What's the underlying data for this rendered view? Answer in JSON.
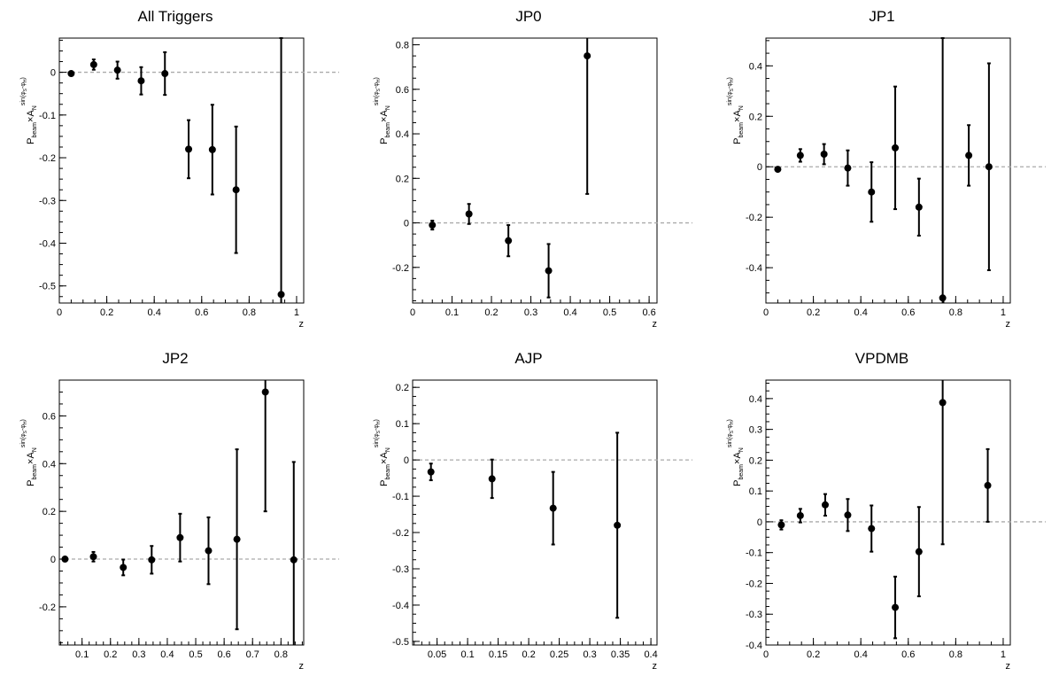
{
  "chart_data": [
    {
      "type": "scatter",
      "title": "All Triggers",
      "xlabel": "z",
      "ylabel": {
        "prefix": "P",
        "sub": "beam",
        "times": "×A",
        "base_sub": "N",
        "sup": "sin(φ",
        "sup_sub1": "S",
        "sup_mid": "-φ",
        "sup_sub2": "H",
        "sup_end": ")"
      },
      "xlim": [
        0,
        1.03
      ],
      "ylim": [
        -0.54,
        0.08
      ],
      "xticks": [
        0,
        0.2,
        0.4,
        0.6,
        0.8,
        1
      ],
      "xtick_labels": [
        "0",
        "0.2",
        "0.4",
        "0.6",
        "0.8",
        "1"
      ],
      "yticks": [
        -0.5,
        -0.4,
        -0.3,
        -0.2,
        -0.1,
        0
      ],
      "ytick_labels": [
        "-0.5",
        "-0.4",
        "-0.3",
        "-0.2",
        "-0.1",
        "0"
      ],
      "x": [
        0.05,
        0.145,
        0.245,
        0.345,
        0.445,
        0.545,
        0.645,
        0.745,
        0.935
      ],
      "y": [
        -0.003,
        0.018,
        0.005,
        -0.02,
        -0.003,
        -0.18,
        -0.181,
        -0.275,
        -0.52
      ],
      "yerr": [
        0.003,
        0.012,
        0.02,
        0.032,
        0.05,
        0.068,
        0.105,
        0.148,
        0.6
      ],
      "zero_line": true
    },
    {
      "type": "scatter",
      "title": "JP0",
      "xlabel": "z",
      "ylabel": {
        "prefix": "P",
        "sub": "beam",
        "times": "×A",
        "base_sub": "N",
        "sup": "sin(φ",
        "sup_sub1": "S",
        "sup_mid": "-φ",
        "sup_sub2": "H",
        "sup_end": ")"
      },
      "xlim": [
        0,
        0.62
      ],
      "ylim": [
        -0.36,
        0.83
      ],
      "xticks": [
        0,
        0.1,
        0.2,
        0.3,
        0.4,
        0.5,
        0.6
      ],
      "xtick_labels": [
        "0",
        "0.1",
        "0.2",
        "0.3",
        "0.4",
        "0.5",
        "0.6"
      ],
      "yticks": [
        -0.2,
        0,
        0.2,
        0.4,
        0.6,
        0.8
      ],
      "ytick_labels": [
        "-0.2",
        "0",
        "0.2",
        "0.4",
        "0.6",
        "0.8"
      ],
      "x": [
        0.05,
        0.143,
        0.243,
        0.345,
        0.443
      ],
      "y": [
        -0.01,
        0.04,
        -0.08,
        -0.215,
        0.75
      ],
      "yerr": [
        0.02,
        0.045,
        0.07,
        0.12,
        0.62
      ],
      "zero_line": true
    },
    {
      "type": "scatter",
      "title": "JP1",
      "xlabel": "z",
      "ylabel": {
        "prefix": "P",
        "sub": "beam",
        "times": "×A",
        "base_sub": "N",
        "sup": "sin(φ",
        "sup_sub1": "S",
        "sup_mid": "-φ",
        "sup_sub2": "H",
        "sup_end": ")"
      },
      "xlim": [
        0,
        1.03
      ],
      "ylim": [
        -0.54,
        0.51
      ],
      "xticks": [
        0,
        0.2,
        0.4,
        0.6,
        0.8,
        1
      ],
      "xtick_labels": [
        "0",
        "0.2",
        "0.4",
        "0.6",
        "0.8",
        "1"
      ],
      "yticks": [
        -0.4,
        -0.2,
        0,
        0.2,
        0.4
      ],
      "ytick_labels": [
        "-0.4",
        "-0.2",
        "0",
        "0.2",
        "0.4"
      ],
      "x": [
        0.05,
        0.145,
        0.245,
        0.345,
        0.445,
        0.545,
        0.645,
        0.745,
        0.855,
        0.94
      ],
      "y": [
        -0.01,
        0.045,
        0.05,
        -0.005,
        -0.1,
        0.075,
        -0.16,
        -0.52,
        0.045,
        0.0
      ],
      "yerr": [
        0.005,
        0.025,
        0.04,
        0.07,
        0.118,
        0.243,
        0.113,
        1.03,
        0.12,
        0.41
      ],
      "zero_line": true
    },
    {
      "type": "scatter",
      "title": "JP2",
      "xlabel": "z",
      "ylabel": {
        "prefix": "P",
        "sub": "beam",
        "times": "×A",
        "base_sub": "N",
        "sup": "sin(φ",
        "sup_sub1": "S",
        "sup_mid": "-φ",
        "sup_sub2": "H",
        "sup_end": ")"
      },
      "xlim": [
        0.02,
        0.88
      ],
      "ylim": [
        -0.36,
        0.75
      ],
      "xticks": [
        0.1,
        0.2,
        0.3,
        0.4,
        0.5,
        0.6,
        0.7,
        0.8
      ],
      "xtick_labels": [
        "0.1",
        "0.2",
        "0.3",
        "0.4",
        "0.5",
        "0.6",
        "0.7",
        "0.8"
      ],
      "yticks": [
        -0.2,
        0,
        0.2,
        0.4,
        0.6
      ],
      "ytick_labels": [
        "-0.2",
        "0",
        "0.2",
        "0.4",
        "0.6"
      ],
      "x": [
        0.04,
        0.14,
        0.245,
        0.345,
        0.445,
        0.545,
        0.645,
        0.745,
        0.845
      ],
      "y": [
        0.0,
        0.01,
        -0.035,
        -0.003,
        0.09,
        0.035,
        0.083,
        0.7,
        -0.003
      ],
      "yerr": [
        0.004,
        0.02,
        0.033,
        0.058,
        0.1,
        0.14,
        0.377,
        0.5,
        0.41
      ],
      "zero_line": true
    },
    {
      "type": "scatter",
      "title": "AJP",
      "xlabel": "z",
      "ylabel": {
        "prefix": "P",
        "sub": "beam",
        "times": "×A",
        "base_sub": "N",
        "sup": "sin(φ",
        "sup_sub1": "S",
        "sup_mid": "-φ",
        "sup_sub2": "H",
        "sup_end": ")"
      },
      "xlim": [
        0.01,
        0.41
      ],
      "ylim": [
        -0.51,
        0.22
      ],
      "xticks": [
        0.05,
        0.1,
        0.15,
        0.2,
        0.25,
        0.3,
        0.35,
        0.4
      ],
      "xtick_labels": [
        "0.05",
        "0.1",
        "0.15",
        "0.2",
        "0.25",
        "0.3",
        "0.35",
        "0.4"
      ],
      "yticks": [
        -0.5,
        -0.4,
        -0.3,
        -0.2,
        -0.1,
        0,
        0.1,
        0.2
      ],
      "ytick_labels": [
        "-0.5",
        "-0.4",
        "-0.3",
        "-0.2",
        "-0.1",
        "0",
        "0.1",
        "0.2"
      ],
      "x": [
        0.04,
        0.14,
        0.24,
        0.345
      ],
      "y": [
        -0.033,
        -0.052,
        -0.133,
        -0.18
      ],
      "yerr": [
        0.023,
        0.053,
        0.1,
        0.255
      ],
      "zero_line": true
    },
    {
      "type": "scatter",
      "title": "VPDMB",
      "xlabel": "z",
      "ylabel": {
        "prefix": "P",
        "sub": "beam",
        "times": "×A",
        "base_sub": "N",
        "sup": "sin(φ",
        "sup_sub1": "S",
        "sup_mid": "-φ",
        "sup_sub2": "H",
        "sup_end": ")"
      },
      "xlim": [
        0,
        1.03
      ],
      "ylim": [
        -0.4,
        0.46
      ],
      "xticks": [
        0,
        0.2,
        0.4,
        0.6,
        0.8,
        1
      ],
      "xtick_labels": [
        "0",
        "0.2",
        "0.4",
        "0.6",
        "0.8",
        "1"
      ],
      "yticks": [
        -0.4,
        -0.3,
        -0.2,
        -0.1,
        0,
        0.1,
        0.2,
        0.3,
        0.4
      ],
      "ytick_labels": [
        "-0.4",
        "-0.3",
        "-0.2",
        "-0.1",
        "0",
        "0.1",
        "0.2",
        "0.3",
        "0.4"
      ],
      "x": [
        0.065,
        0.145,
        0.25,
        0.345,
        0.445,
        0.545,
        0.645,
        0.745,
        0.935
      ],
      "y": [
        -0.01,
        0.02,
        0.055,
        0.022,
        -0.022,
        -0.278,
        -0.097,
        0.387,
        0.118
      ],
      "yerr": [
        0.015,
        0.022,
        0.035,
        0.052,
        0.075,
        0.1,
        0.145,
        0.46,
        0.118
      ],
      "zero_line": true
    }
  ]
}
